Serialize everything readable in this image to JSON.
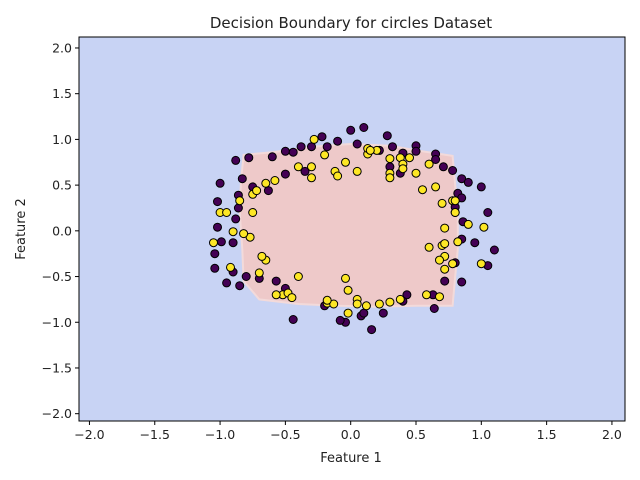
{
  "chart_data": {
    "type": "scatter",
    "title": "Decision Boundary for circles Dataset",
    "xlabel": "Feature 1",
    "ylabel": "Feature 2",
    "xlim": [
      -2.08,
      2.1
    ],
    "ylim": [
      -2.08,
      2.12
    ],
    "xticks": [
      -2.0,
      -1.5,
      -1.0,
      -0.5,
      0.0,
      0.5,
      1.0,
      1.5,
      2.0
    ],
    "yticks": [
      -2.0,
      -1.5,
      -1.0,
      -0.5,
      0.0,
      0.5,
      1.0,
      1.5,
      2.0
    ],
    "xtick_labels": [
      "−2.0",
      "−1.5",
      "−1.0",
      "−0.5",
      "0.0",
      "0.5",
      "1.0",
      "1.5",
      "2.0"
    ],
    "ytick_labels": [
      "−2.0",
      "−1.5",
      "−1.0",
      "−0.5",
      "0.0",
      "0.5",
      "1.0",
      "1.5",
      "2.0"
    ],
    "grid": false,
    "background_region_color": "#c8d3f4",
    "inner_region_color": "#eec9c9",
    "inner_region_outline": [
      [
        -0.82,
        0.83
      ],
      [
        -0.6,
        0.86
      ],
      [
        -0.3,
        0.92
      ],
      [
        0.0,
        0.95
      ],
      [
        0.3,
        0.93
      ],
      [
        0.55,
        0.87
      ],
      [
        0.78,
        0.82
      ],
      [
        0.8,
        0.5
      ],
      [
        0.82,
        0.2
      ],
      [
        0.82,
        -0.2
      ],
      [
        0.8,
        -0.5
      ],
      [
        0.78,
        -0.82
      ],
      [
        0.5,
        -0.82
      ],
      [
        0.2,
        -0.83
      ],
      [
        -0.1,
        -0.82
      ],
      [
        -0.4,
        -0.8
      ],
      [
        -0.7,
        -0.75
      ],
      [
        -0.82,
        -0.55
      ],
      [
        -0.83,
        -0.2
      ],
      [
        -0.85,
        0.2
      ],
      [
        -0.84,
        0.55
      ]
    ],
    "series": [
      {
        "color": "#440154",
        "points": [
          [
            -0.88,
            0.77
          ],
          [
            -0.78,
            0.8
          ],
          [
            -0.6,
            0.81
          ],
          [
            -0.5,
            0.87
          ],
          [
            -0.44,
            0.86
          ],
          [
            -0.38,
            0.92
          ],
          [
            -0.22,
            1.03
          ],
          [
            -0.18,
            0.92
          ],
          [
            -0.1,
            0.98
          ],
          [
            0.0,
            1.1
          ],
          [
            0.1,
            1.13
          ],
          [
            0.05,
            0.95
          ],
          [
            0.28,
            1.04
          ],
          [
            0.32,
            0.92
          ],
          [
            0.4,
            0.85
          ],
          [
            0.5,
            0.93
          ],
          [
            0.5,
            0.87
          ],
          [
            0.65,
            0.84
          ],
          [
            0.71,
            0.7
          ],
          [
            0.78,
            0.66
          ],
          [
            0.85,
            0.57
          ],
          [
            0.9,
            0.53
          ],
          [
            0.82,
            0.41
          ],
          [
            0.85,
            0.36
          ],
          [
            0.8,
            0.26
          ],
          [
            1.0,
            0.48
          ],
          [
            1.05,
            0.2
          ],
          [
            0.86,
            0.1
          ],
          [
            0.85,
            -0.09
          ],
          [
            0.95,
            -0.13
          ],
          [
            1.1,
            -0.21
          ],
          [
            1.05,
            -0.38
          ],
          [
            0.8,
            -0.35
          ],
          [
            0.85,
            -0.56
          ],
          [
            0.72,
            -0.55
          ],
          [
            0.64,
            -0.85
          ],
          [
            0.63,
            -0.7
          ],
          [
            0.43,
            -0.7
          ],
          [
            0.4,
            -0.77
          ],
          [
            0.25,
            -0.9
          ],
          [
            0.16,
            -1.08
          ],
          [
            0.08,
            -0.93
          ],
          [
            0.1,
            -0.9
          ],
          [
            -0.04,
            -1.0
          ],
          [
            -0.08,
            -0.98
          ],
          [
            -0.2,
            -0.82
          ],
          [
            -0.44,
            -0.97
          ],
          [
            -0.5,
            -0.63
          ],
          [
            -0.57,
            -0.55
          ],
          [
            -0.7,
            -0.52
          ],
          [
            -0.8,
            -0.5
          ],
          [
            -0.85,
            -0.6
          ],
          [
            -0.9,
            -0.45
          ],
          [
            -0.95,
            -0.57
          ],
          [
            -1.04,
            -0.41
          ],
          [
            -1.04,
            -0.25
          ],
          [
            -0.99,
            -0.12
          ],
          [
            -0.9,
            -0.13
          ],
          [
            -1.02,
            0.04
          ],
          [
            -1.02,
            0.32
          ],
          [
            -1.0,
            0.52
          ],
          [
            -0.83,
            0.57
          ],
          [
            -0.86,
            0.39
          ],
          [
            -0.86,
            0.25
          ],
          [
            -0.88,
            0.13
          ],
          [
            -0.75,
            0.48
          ],
          [
            -0.63,
            0.44
          ],
          [
            -0.5,
            0.62
          ],
          [
            -0.35,
            0.65
          ],
          [
            -0.3,
            0.92
          ],
          [
            0.3,
            0.7
          ],
          [
            0.38,
            0.63
          ],
          [
            0.22,
            0.88
          ],
          [
            0.65,
            0.78
          ]
        ]
      },
      {
        "color": "#fde725",
        "points": [
          [
            -0.28,
            1.0
          ],
          [
            0.13,
            0.84
          ],
          [
            0.13,
            0.9
          ],
          [
            0.2,
            0.88
          ],
          [
            0.3,
            0.79
          ],
          [
            0.38,
            0.8
          ],
          [
            0.4,
            0.73
          ],
          [
            0.45,
            0.8
          ],
          [
            0.3,
            0.63
          ],
          [
            0.4,
            0.68
          ],
          [
            0.5,
            0.63
          ],
          [
            0.6,
            0.73
          ],
          [
            0.65,
            0.48
          ],
          [
            0.55,
            0.45
          ],
          [
            0.7,
            0.3
          ],
          [
            0.78,
            0.33
          ],
          [
            0.8,
            0.2
          ],
          [
            0.72,
            0.03
          ],
          [
            0.9,
            0.07
          ],
          [
            1.02,
            0.04
          ],
          [
            0.6,
            -0.18
          ],
          [
            0.7,
            -0.16
          ],
          [
            0.72,
            -0.14
          ],
          [
            0.72,
            -0.28
          ],
          [
            0.68,
            -0.32
          ],
          [
            0.72,
            -0.42
          ],
          [
            0.78,
            -0.36
          ],
          [
            1.0,
            -0.36
          ],
          [
            0.68,
            -0.72
          ],
          [
            0.58,
            -0.7
          ],
          [
            0.38,
            -0.75
          ],
          [
            0.3,
            -0.78
          ],
          [
            0.22,
            -0.8
          ],
          [
            0.12,
            -0.82
          ],
          [
            0.05,
            -0.75
          ],
          [
            0.05,
            -0.8
          ],
          [
            -0.02,
            -0.65
          ],
          [
            -0.04,
            -0.52
          ],
          [
            -0.02,
            -0.9
          ],
          [
            -0.18,
            -0.79
          ],
          [
            -0.13,
            -0.8
          ],
          [
            -0.18,
            -0.76
          ],
          [
            -0.4,
            -0.5
          ],
          [
            -0.52,
            -0.7
          ],
          [
            -0.48,
            -0.68
          ],
          [
            -0.45,
            -0.73
          ],
          [
            -0.57,
            -0.7
          ],
          [
            -0.7,
            -0.46
          ],
          [
            -0.65,
            -0.32
          ],
          [
            -0.68,
            -0.28
          ],
          [
            -0.77,
            -0.07
          ],
          [
            -0.82,
            -0.03
          ],
          [
            -0.92,
            -0.4
          ],
          [
            -0.9,
            -0.01
          ],
          [
            -1.05,
            -0.13
          ],
          [
            -1.0,
            0.2
          ],
          [
            -0.95,
            0.2
          ],
          [
            -0.85,
            0.33
          ],
          [
            -0.75,
            0.4
          ],
          [
            -0.72,
            0.44
          ],
          [
            -0.75,
            0.2
          ],
          [
            -0.65,
            0.52
          ],
          [
            -0.58,
            0.55
          ],
          [
            -0.4,
            0.7
          ],
          [
            -0.3,
            0.58
          ],
          [
            -0.3,
            0.7
          ],
          [
            -0.12,
            0.65
          ],
          [
            -0.1,
            0.6
          ],
          [
            -0.04,
            0.75
          ],
          [
            0.05,
            0.65
          ],
          [
            -0.2,
            0.83
          ],
          [
            0.3,
            0.58
          ],
          [
            0.15,
            0.88
          ],
          [
            0.8,
            0.33
          ],
          [
            0.8,
            0.2
          ],
          [
            0.82,
            -0.12
          ]
        ]
      }
    ]
  }
}
